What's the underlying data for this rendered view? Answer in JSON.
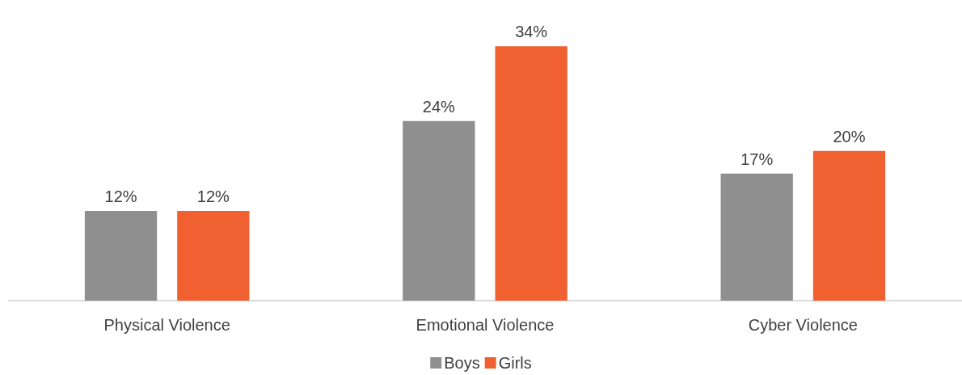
{
  "chart_data": {
    "type": "bar",
    "categories": [
      "Physical Violence",
      "Emotional Violence",
      "Cyber Violence"
    ],
    "series": [
      {
        "name": "Boys",
        "color": "#8f8f8f",
        "values": [
          12,
          24,
          17
        ],
        "value_labels": [
          "12%",
          "24%",
          "17%"
        ]
      },
      {
        "name": "Girls",
        "color": "#f06030",
        "values": [
          12,
          34,
          20
        ],
        "value_labels": [
          "12%",
          "34%",
          "20%"
        ]
      }
    ],
    "legend": "bottom"
  }
}
